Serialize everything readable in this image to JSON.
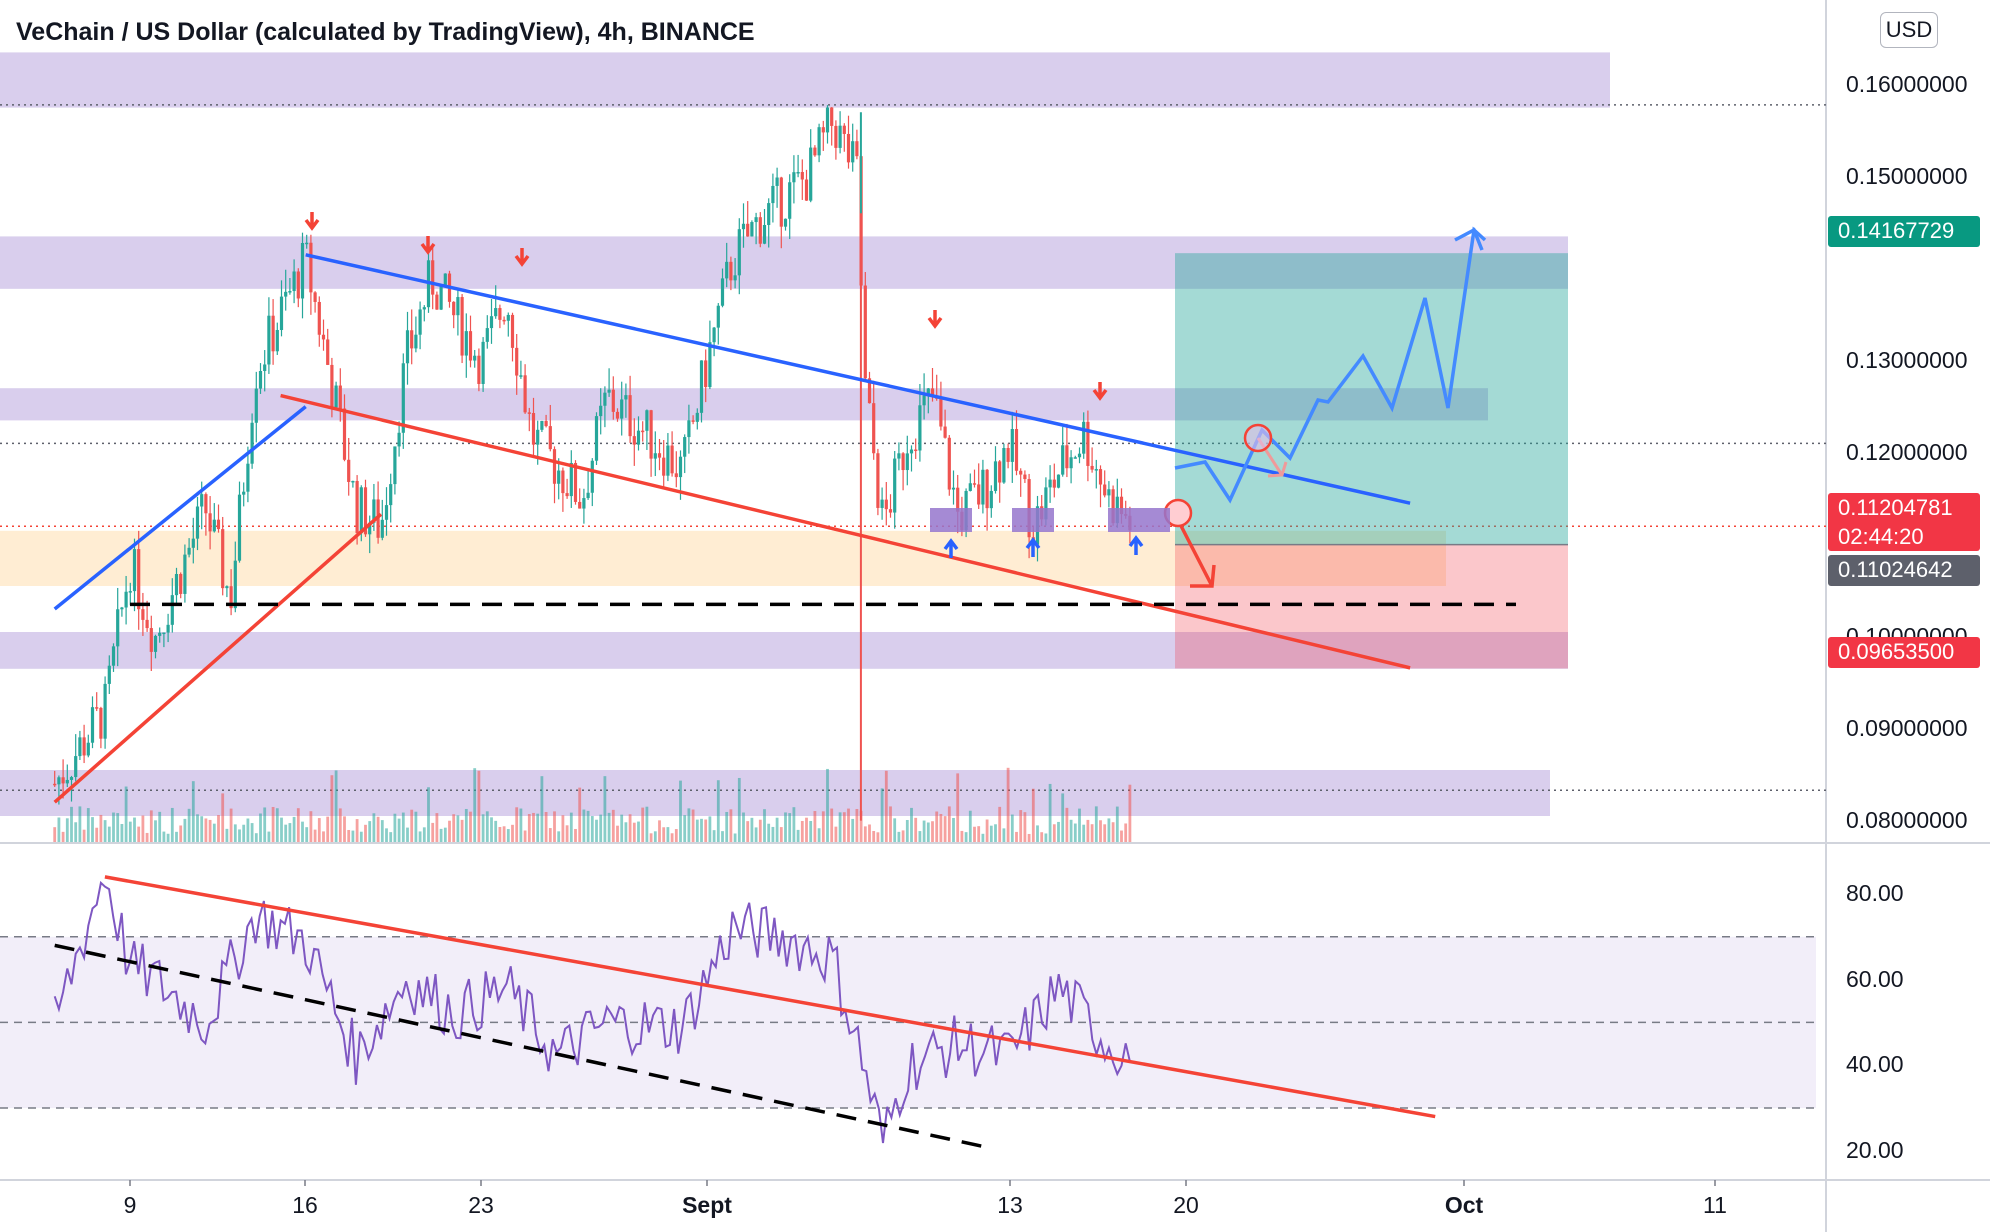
{
  "header": {
    "title": "VeChain / US Dollar (calculated by TradingView), 4h, BINANCE",
    "currency": "USD"
  },
  "price_axis": {
    "labels": [
      "0.16000000",
      "0.15000000",
      "0.13000000",
      "0.12000000",
      "0.10000000",
      "0.09000000",
      "0.08000000"
    ],
    "values": [
      0.16,
      0.15,
      0.13,
      0.12,
      0.1,
      0.09,
      0.08
    ]
  },
  "rsi_axis": {
    "labels": [
      "80.00",
      "60.00",
      "40.00",
      "20.00"
    ],
    "values": [
      80,
      60,
      40,
      20
    ]
  },
  "time_axis": {
    "labels": [
      "9",
      "16",
      "23",
      "Sept",
      "13",
      "20",
      "Oct",
      "11"
    ],
    "bold": [
      false,
      false,
      false,
      true,
      false,
      false,
      true,
      false
    ]
  },
  "price_tags": {
    "target": {
      "value": "0.14167729",
      "color": "#089981"
    },
    "last": {
      "value": "0.11204781",
      "countdown": "02:44:20",
      "color": "#f23645"
    },
    "ma": {
      "value": "0.11024642",
      "color": "#5d606b"
    },
    "stop": {
      "value": "0.09653500",
      "color": "#f23645"
    }
  },
  "colors": {
    "zone": "#b39ddb",
    "up": "#26a69a",
    "down": "#ef5350",
    "rsi": "#7e57c2",
    "blue_line": "#2962ff",
    "red_line": "#f44336",
    "target_fill": "#26a69a",
    "stop_fill": "#f23645"
  },
  "chart_data": {
    "type": "candlestick",
    "symbol": "VeChain / US Dollar (calculated by TradingView)",
    "interval": "4h",
    "exchange": "BINANCE",
    "price_range": [
      0.076,
      0.165
    ],
    "rsi_range": [
      18,
      88
    ],
    "rsi_bands": [
      70,
      50,
      30
    ],
    "price_path": [
      {
        "date": "Aug 6",
        "price": 0.084
      },
      {
        "date": "Aug 8",
        "price": 0.092
      },
      {
        "date": "Aug 9",
        "price": 0.108
      },
      {
        "date": "Aug 10",
        "price": 0.1
      },
      {
        "date": "Aug 12",
        "price": 0.114
      },
      {
        "date": "Aug 13",
        "price": 0.104
      },
      {
        "date": "Aug 14",
        "price": 0.129
      },
      {
        "date": "Aug 16",
        "price": 0.141
      },
      {
        "date": "Aug 17",
        "price": 0.128
      },
      {
        "date": "Aug 18",
        "price": 0.114
      },
      {
        "date": "Aug 19",
        "price": 0.112
      },
      {
        "date": "Aug 20",
        "price": 0.13
      },
      {
        "date": "Aug 21",
        "price": 0.139
      },
      {
        "date": "Aug 23",
        "price": 0.13
      },
      {
        "date": "Aug 24",
        "price": 0.137
      },
      {
        "date": "Aug 25",
        "price": 0.122
      },
      {
        "date": "Aug 27",
        "price": 0.115
      },
      {
        "date": "Aug 28",
        "price": 0.126
      },
      {
        "date": "Aug 30",
        "price": 0.121
      },
      {
        "date": "Aug 31",
        "price": 0.118
      },
      {
        "date": "Sept 1",
        "price": 0.13
      },
      {
        "date": "Sept 2",
        "price": 0.141
      },
      {
        "date": "Sept 3",
        "price": 0.145
      },
      {
        "date": "Sept 5",
        "price": 0.15
      },
      {
        "date": "Sept 6",
        "price": 0.156
      },
      {
        "date": "Sept 7",
        "price": 0.15
      },
      {
        "date": "Sept 7",
        "price": 0.128
      },
      {
        "date": "Sept 8",
        "price": 0.112
      },
      {
        "date": "Sept 9",
        "price": 0.122
      },
      {
        "date": "Sept 10",
        "price": 0.126
      },
      {
        "date": "Sept 11",
        "price": 0.113
      },
      {
        "date": "Sept 12",
        "price": 0.116
      },
      {
        "date": "Sept 13",
        "price": 0.121
      },
      {
        "date": "Sept 14",
        "price": 0.112
      },
      {
        "date": "Sept 15",
        "price": 0.118
      },
      {
        "date": "Sept 16",
        "price": 0.122
      },
      {
        "date": "Sept 17",
        "price": 0.115
      },
      {
        "date": "Sept 18",
        "price": 0.112
      }
    ],
    "wick_extremes": [
      {
        "date": "Sept 7",
        "high": 0.157
      },
      {
        "date": "Sept 7",
        "low": 0.08
      }
    ],
    "rsi_path": [
      {
        "date": "Aug 6",
        "rsi": 50
      },
      {
        "date": "Aug 8",
        "rsi": 85
      },
      {
        "date": "Aug 9",
        "rsi": 63
      },
      {
        "date": "Aug 10",
        "rsi": 60
      },
      {
        "date": "Aug 12",
        "rsi": 50
      },
      {
        "date": "Aug 14",
        "rsi": 75
      },
      {
        "date": "Aug 16",
        "rsi": 69
      },
      {
        "date": "Aug 18",
        "rsi": 42
      },
      {
        "date": "Aug 20",
        "rsi": 60
      },
      {
        "date": "Aug 22",
        "rsi": 52
      },
      {
        "date": "Aug 24",
        "rsi": 58
      },
      {
        "date": "Aug 26",
        "rsi": 42
      },
      {
        "date": "Aug 28",
        "rsi": 50
      },
      {
        "date": "Aug 31",
        "rsi": 49
      },
      {
        "date": "Sept 2",
        "rsi": 72
      },
      {
        "date": "Sept 4",
        "rsi": 70
      },
      {
        "date": "Sept 6",
        "rsi": 65
      },
      {
        "date": "Sept 7",
        "rsi": 45
      },
      {
        "date": "Sept 8",
        "rsi": 22
      },
      {
        "date": "Sept 9",
        "rsi": 40
      },
      {
        "date": "Sept 11",
        "rsi": 45
      },
      {
        "date": "Sept 13",
        "rsi": 42
      },
      {
        "date": "Sept 15",
        "rsi": 58
      },
      {
        "date": "Sept 17",
        "rsi": 45
      },
      {
        "date": "Sept 18",
        "rsi": 42
      }
    ],
    "drawings": {
      "resistance_zones": [
        {
          "from": 0.1575,
          "to": 0.1635
        },
        {
          "from": 0.1378,
          "to": 0.1435
        },
        {
          "from": 0.1235,
          "to": 0.127
        },
        {
          "from": 0.0965,
          "to": 0.1005
        },
        {
          "from": 0.0805,
          "to": 0.0855
        }
      ],
      "support_zone": {
        "from": 0.1055,
        "to": 0.1115
      },
      "horizontal_levels": [
        0.1578,
        0.121,
        0.112,
        0.0833
      ],
      "dashed_support": 0.1035,
      "trendlines": [
        {
          "color": "blue",
          "from": {
            "date": "Aug 6",
            "price": 0.103
          },
          "to": {
            "date": "Aug 16",
            "price": 0.125
          }
        },
        {
          "color": "blue",
          "from": {
            "date": "Aug 16",
            "price": 0.1415
          },
          "to": {
            "date": "Sept 29",
            "price": 0.1145
          }
        },
        {
          "color": "red",
          "from": {
            "date": "Aug 6",
            "price": 0.082
          },
          "to": {
            "date": "Aug 19",
            "price": 0.1133
          }
        },
        {
          "color": "red",
          "from": {
            "date": "Aug 15",
            "price": 0.1262
          },
          "to": {
            "date": "Sept 29",
            "price": 0.0966
          }
        }
      ],
      "position": {
        "type": "long",
        "entry": 0.11,
        "target": 0.14167729,
        "stop": 0.096535
      },
      "rsi_trendlines": [
        {
          "style": "solid",
          "from": {
            "date": "Aug 8",
            "rsi": 84
          },
          "to": {
            "date": "Sept 30",
            "rsi": 28
          }
        },
        {
          "style": "dashed",
          "from": {
            "date": "Aug 6",
            "rsi": 68
          },
          "to": {
            "date": "Sept 12",
            "rsi": 21
          }
        }
      ]
    }
  }
}
